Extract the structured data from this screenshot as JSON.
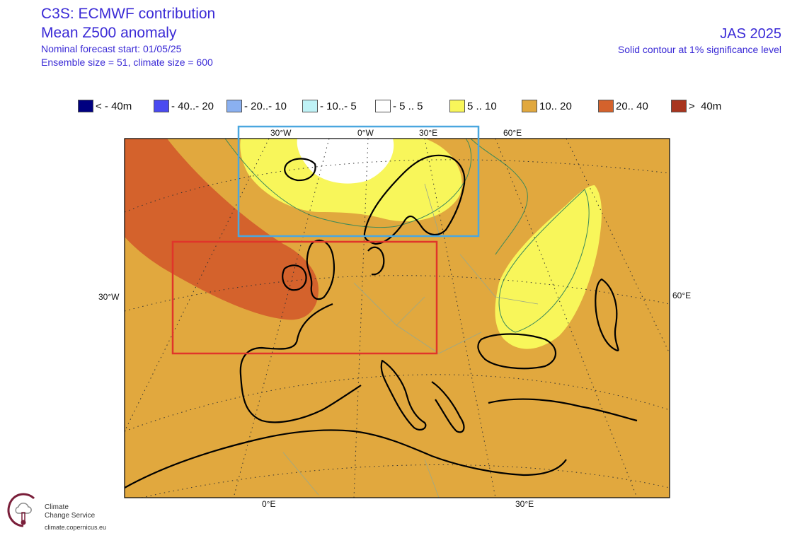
{
  "header": {
    "title": "C3S: ECMWF contribution",
    "subtitle": "Mean Z500 anomaly",
    "forecast_start": "Nominal forecast start: 01/05/25",
    "ensemble": "Ensemble size = 51, climate size = 600",
    "season": "JAS 2025",
    "significance": "Solid contour at 1% significance level"
  },
  "legend": [
    {
      "label": "< - 40m",
      "color": "#000080"
    },
    {
      "label": "- 40..- 20",
      "color": "#4a4af0"
    },
    {
      "label": "- 20..- 10",
      "color": "#8ab0f0"
    },
    {
      "label": "- 10..- 5",
      "color": "#bff2f6"
    },
    {
      "label": "- 5 .. 5",
      "color": "#ffffff"
    },
    {
      "label": "5 .. 10",
      "color": "#f8f65a"
    },
    {
      "label": "10.. 20",
      "color": "#e1a83e"
    },
    {
      "label": "20.. 40",
      "color": "#d4622c"
    },
    {
      "label": ">  40m",
      "color": "#a8351f"
    }
  ],
  "map": {
    "lon_labels_top": [
      "30°W",
      "0°W",
      "30°E",
      "60°E"
    ],
    "lat_label_left": "30°W",
    "lat_label_right": "60°E",
    "lon_labels_bottom": [
      "0°E",
      "30°E"
    ],
    "regions": [
      {
        "name": "north-region-box",
        "color": "#4aa7df"
      },
      {
        "name": "central-region-box",
        "color": "#e0352a"
      }
    ]
  },
  "logo": {
    "name_line1": "Climate",
    "name_line2": "Change Service",
    "url": "climate.copernicus.eu"
  }
}
